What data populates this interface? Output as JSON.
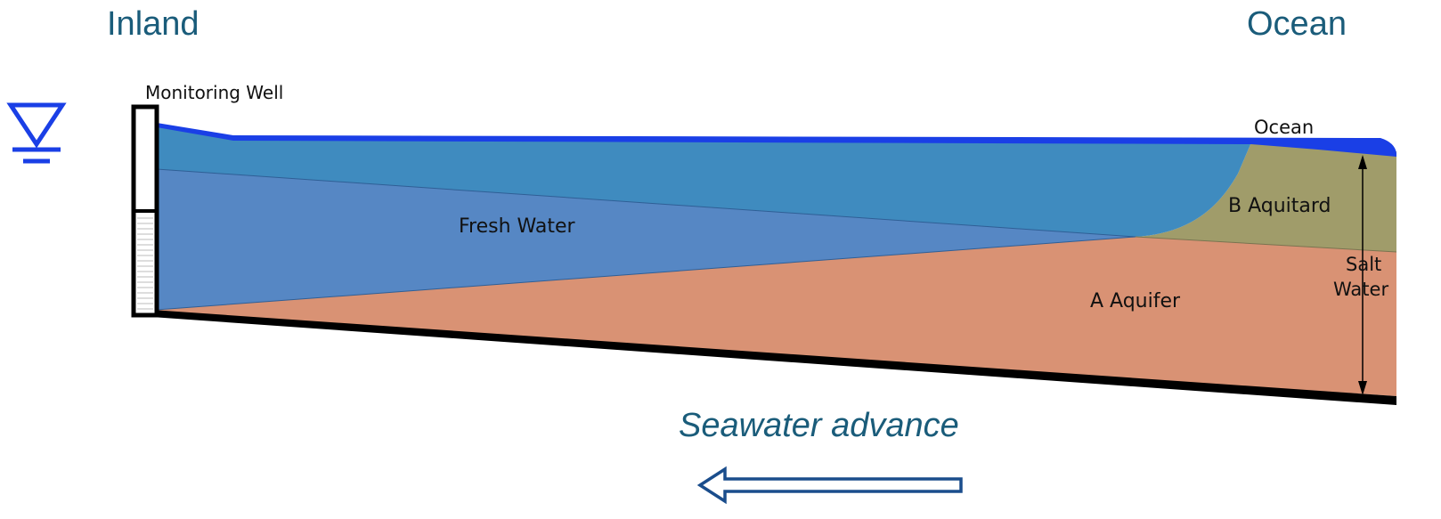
{
  "header": {
    "inland_label": "Inland",
    "ocean_label": "Ocean"
  },
  "diagram": {
    "monitoring_well_label": "Monitoring Well",
    "ocean_water_label": "Ocean",
    "fresh_water_label": "Fresh Water",
    "b_aquitard_label": "B Aquitard",
    "a_aquifer_label": "A Aquifer",
    "salt_label": "Salt",
    "water_label": "Water",
    "water_table_icon": "water-table-triangle-icon",
    "colors": {
      "upper_fresh": "#3f8bbf",
      "lower_fresh": "#5687c4",
      "aquitard": "#a09c6a",
      "aquifer": "#d99274",
      "ocean": "#1a3fe6",
      "base": "#000000",
      "water_table_symbol": "#1a3fe6",
      "arrow": "#1a4d8c",
      "header_text": "#1a5c7a"
    }
  },
  "caption": {
    "seawater_advance": "Seawater advance"
  }
}
